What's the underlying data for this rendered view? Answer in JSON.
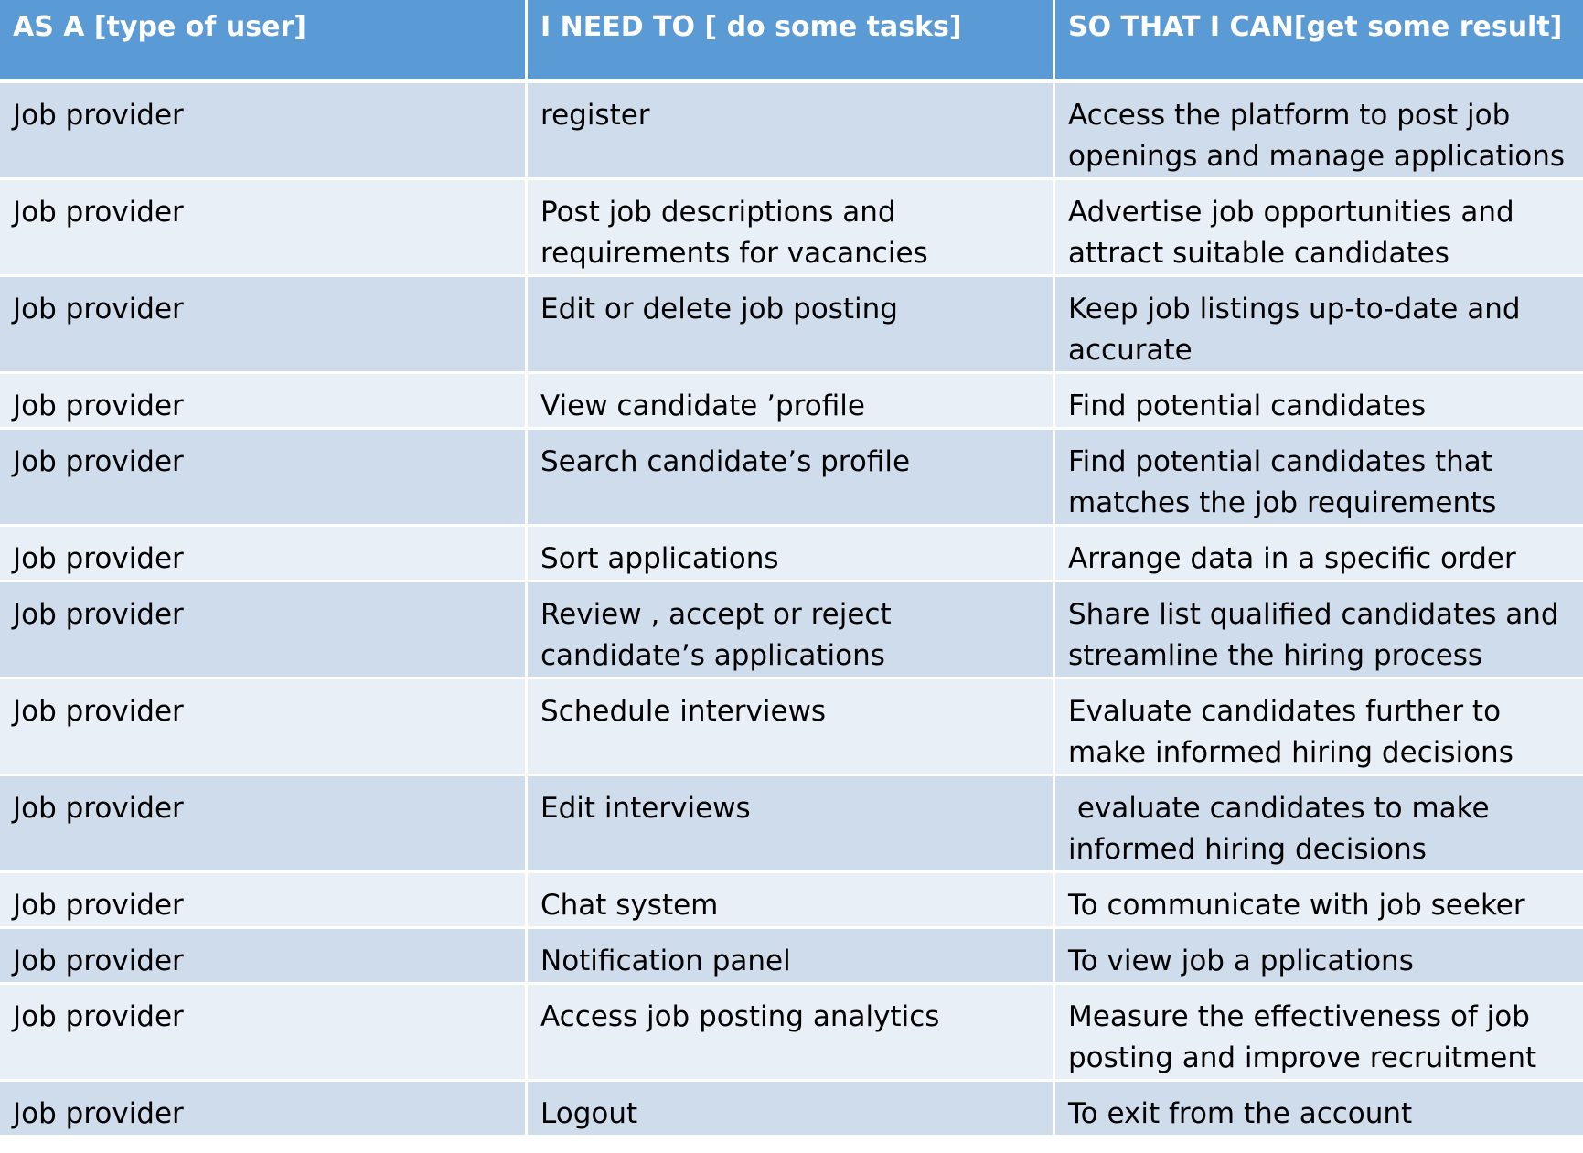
{
  "table": {
    "headers": [
      "AS A [type of user]",
      "I NEED TO [ do some tasks]",
      "SO THAT I CAN[get some result]"
    ],
    "rows": [
      [
        "Job provider",
        "register",
        "Access the platform to post job openings and manage applications"
      ],
      [
        "Job provider",
        "Post job descriptions and requirements for vacancies",
        "Advertise job opportunities and attract suitable candidates"
      ],
      [
        "Job provider",
        "Edit or delete job posting",
        "Keep job listings up-to-date and accurate"
      ],
      [
        "Job provider",
        "View candidate ’profile",
        "Find potential candidates"
      ],
      [
        "Job provider",
        "Search candidate’s profile",
        "Find potential candidates that matches the job requirements"
      ],
      [
        "Job provider",
        "Sort applications",
        "Arrange data in a specific order"
      ],
      [
        "Job provider",
        "Review , accept or reject candidate’s applications",
        "Share list qualified candidates and streamline the hiring process"
      ],
      [
        "Job provider",
        "Schedule interviews",
        "Evaluate candidates further to make informed hiring decisions"
      ],
      [
        "Job provider",
        "Edit interviews",
        " evaluate candidates to make informed hiring decisions"
      ],
      [
        "Job provider",
        "Chat system",
        "To communicate with job seeker"
      ],
      [
        "Job provider",
        "Notification panel",
        "To view job a pplications"
      ],
      [
        "Job provider",
        "Access job posting analytics",
        "Measure the effectiveness of job posting and improve recruitment"
      ],
      [
        "Job provider",
        "Logout",
        "To exit from the account"
      ]
    ]
  },
  "colors": {
    "header_bg": "#5b9bd5",
    "row_dark": "#cfdcec",
    "row_light": "#e9eff7"
  }
}
